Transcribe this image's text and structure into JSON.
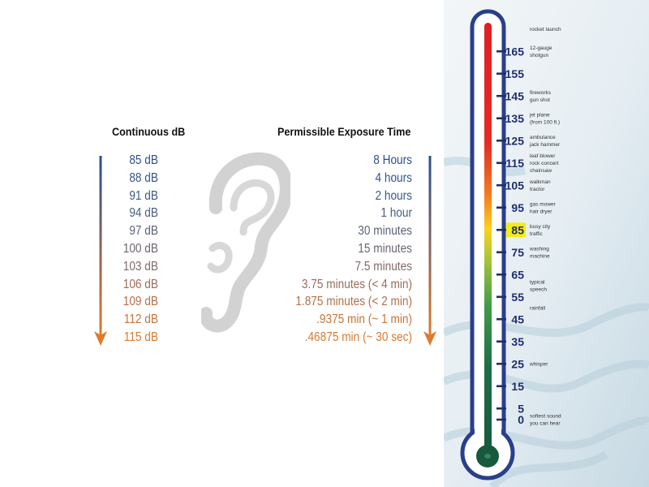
{
  "headers": {
    "db": "Continuous dB",
    "time": "Permissible Exposure Time"
  },
  "exposure_rows": [
    {
      "db": "85 dB",
      "time": "8 Hours",
      "color": "#2b4f8c"
    },
    {
      "db": "88 dB",
      "time": "4 hours",
      "color": "#34548a"
    },
    {
      "db": "91 dB",
      "time": "2 hours",
      "color": "#3d5886"
    },
    {
      "db": "94 dB",
      "time": "1 hour",
      "color": "#4a5d80"
    },
    {
      "db": "97 dB",
      "time": "30 minutes",
      "color": "#5a6278"
    },
    {
      "db": "100 dB",
      "time": "15 minutes",
      "color": "#6d6470"
    },
    {
      "db": "103 dB",
      "time": "7.5 minutes",
      "color": "#836868"
    },
    {
      "db": "106 dB",
      "time": "3.75 minutes (< 4 min)",
      "color": "#9c6b58"
    },
    {
      "db": "109 dB",
      "time": "1.875 minutes (< 2 min)",
      "color": "#b46e48"
    },
    {
      "db": "112 dB",
      "time": ".9375 min (~ 1 min)",
      "color": "#c87238"
    },
    {
      "db": "115 dB",
      "time": ".46875 min (~ 30 sec)",
      "color": "#d9782c"
    }
  ],
  "arrow_colors": {
    "top": "#2a4f8f",
    "bottom": "#e07a2a"
  },
  "thermometer": {
    "scale": [
      "165",
      "155",
      "145",
      "135",
      "125",
      "115",
      "105",
      "95",
      "85",
      "75",
      "65",
      "55",
      "45",
      "35",
      "25",
      "15",
      "5",
      "0"
    ],
    "highlight": "85",
    "highlight_color": "#f4ec1a",
    "scale_color": "#1e2f6e",
    "annotations": [
      {
        "value": 175,
        "lines": [
          "rocket launch"
        ]
      },
      {
        "value": 165,
        "lines": [
          "12-gauge",
          "shotgun"
        ]
      },
      {
        "value": 145,
        "lines": [
          "fireworks",
          "gun shot"
        ]
      },
      {
        "value": 135,
        "lines": [
          "jet plane",
          "(from 100 ft.)"
        ]
      },
      {
        "value": 125,
        "lines": [
          "ambulance",
          "jack hammer"
        ]
      },
      {
        "value": 115,
        "lines": [
          "leaf blower",
          "rock concert",
          "chainsaw"
        ]
      },
      {
        "value": 105,
        "lines": [
          "walkman",
          "tractor"
        ]
      },
      {
        "value": 95,
        "lines": [
          "gas mower",
          "hair dryer"
        ]
      },
      {
        "value": 85,
        "lines": [
          "busy city",
          "traffic"
        ]
      },
      {
        "value": 75,
        "lines": [
          "washing",
          "machine"
        ]
      },
      {
        "value": 60,
        "lines": [
          "typical",
          "speech"
        ]
      },
      {
        "value": 50,
        "lines": [
          "rainfall"
        ]
      },
      {
        "value": 25,
        "lines": [
          "whisper"
        ]
      },
      {
        "value": 0,
        "lines": [
          "softest sound",
          "you can hear"
        ]
      }
    ]
  }
}
